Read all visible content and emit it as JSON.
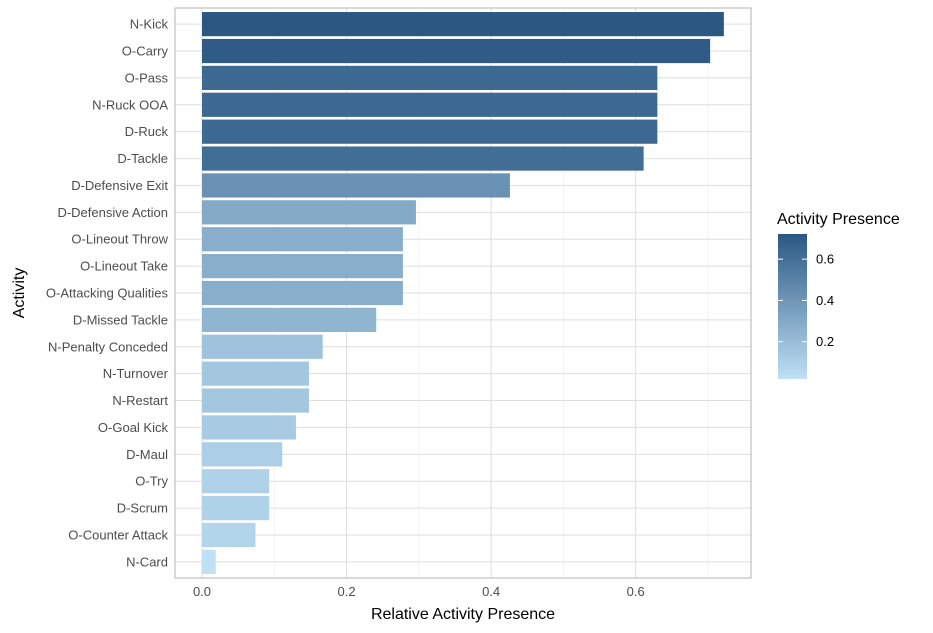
{
  "chart_data": {
    "type": "bar",
    "orientation": "horizontal",
    "xlabel": "Relative Activity Presence",
    "ylabel": "Activity",
    "xlim": [
      -0.037,
      0.76
    ],
    "x_ticks": [
      0.0,
      0.2,
      0.4,
      0.6
    ],
    "x_tick_labels": [
      "0.0",
      "0.2",
      "0.4",
      "0.6"
    ],
    "grid": true,
    "categories": [
      "N-Kick",
      "O-Carry",
      "O-Pass",
      "N-Ruck OOA",
      "D-Ruck",
      "D-Tackle",
      "D-Defensive Exit",
      "D-Defensive Action",
      "O-Lineout Throw",
      "O-Lineout Take",
      "O-Attacking Qualities",
      "D-Missed Tackle",
      "N-Penalty Conceded",
      "N-Turnover",
      "N-Restart",
      "O-Goal Kick",
      "D-Maul",
      "O-Try",
      "D-Scrum",
      "O-Counter Attack",
      "N-Card"
    ],
    "values": [
      0.722,
      0.703,
      0.63,
      0.63,
      0.63,
      0.611,
      0.426,
      0.296,
      0.278,
      0.278,
      0.278,
      0.241,
      0.167,
      0.148,
      0.148,
      0.13,
      0.111,
      0.093,
      0.093,
      0.074,
      0.019
    ],
    "legend": {
      "title": "Activity Presence",
      "position": "right",
      "ticks": [
        0.2,
        0.4,
        0.6
      ],
      "tick_labels": [
        "0.2",
        "0.4",
        "0.6"
      ],
      "range": [
        0.019,
        0.722
      ],
      "color_low": "#bfe0f5",
      "color_high": "#2b5783"
    }
  }
}
